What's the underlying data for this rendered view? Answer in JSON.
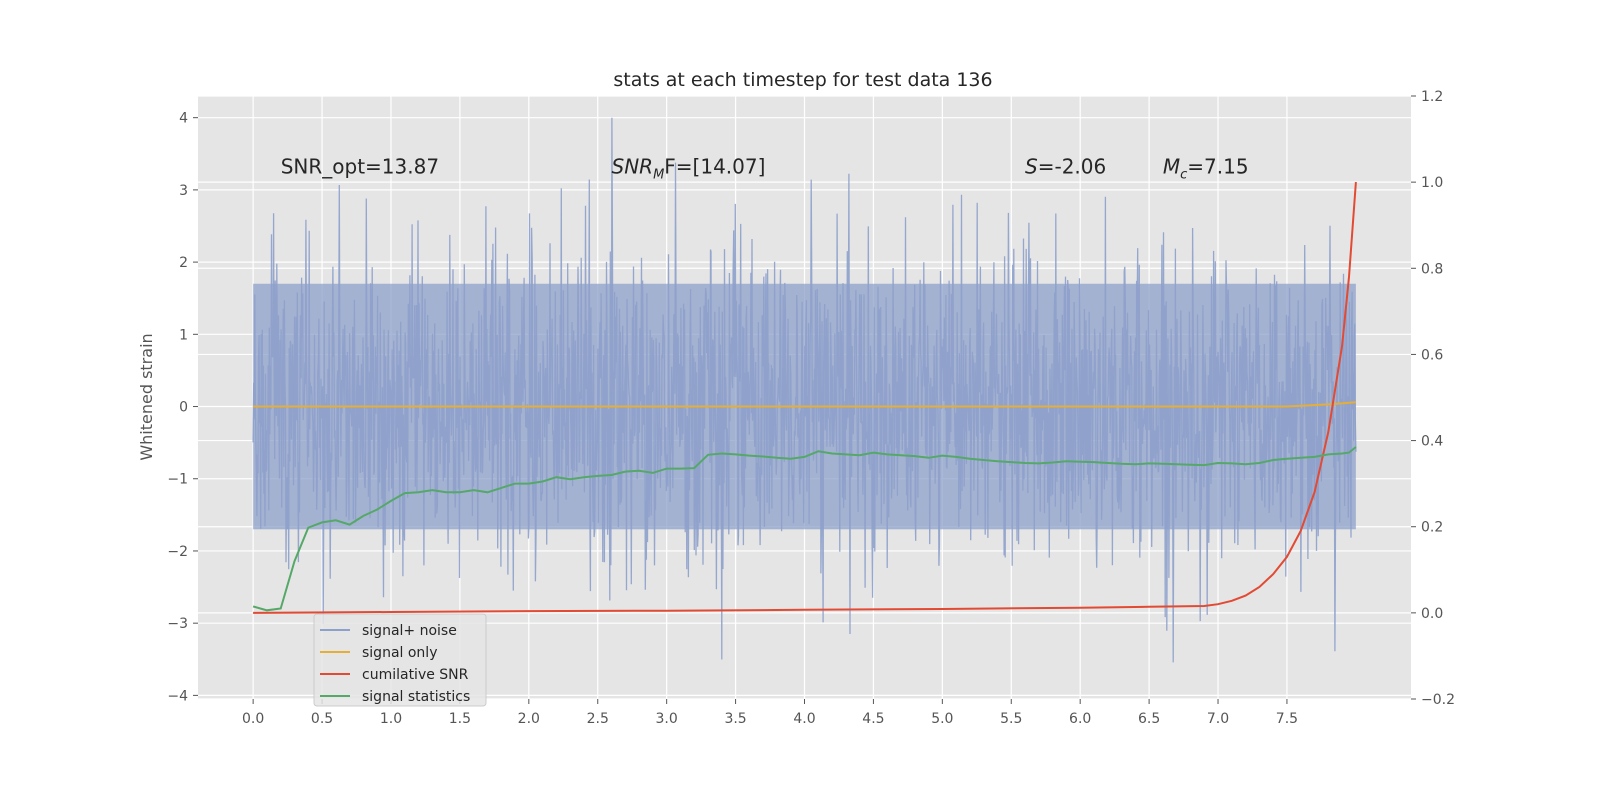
{
  "chart_data": {
    "type": "line",
    "title": "stats at each timestep for test data 136",
    "xlabel": "",
    "ylabel": "Whitened strain",
    "xlim": [
      -0.4,
      8.4
    ],
    "ylim": [
      -4.05,
      4.3
    ],
    "y2lim": [
      -0.2,
      1.2
    ],
    "xticks": [
      "0.0",
      "0.5",
      "1.0",
      "1.5",
      "2.0",
      "2.5",
      "3.0",
      "3.5",
      "4.0",
      "4.5",
      "5.0",
      "5.5",
      "6.0",
      "6.5",
      "7.0",
      "7.5"
    ],
    "xtick_values": [
      0,
      0.5,
      1,
      1.5,
      2,
      2.5,
      3,
      3.5,
      4,
      4.5,
      5,
      5.5,
      6,
      6.5,
      7,
      7.5
    ],
    "yticks": [
      "4",
      "3",
      "2",
      "1",
      "0",
      "−1",
      "−2",
      "−3",
      "−4"
    ],
    "ytick_values": [
      4,
      3,
      2,
      1,
      0,
      -1,
      -2,
      -3,
      -4
    ],
    "y2ticks": [
      "1.2",
      "1.0",
      "0.8",
      "0.6",
      "0.4",
      "0.2",
      "0.0",
      "−0.2"
    ],
    "y2tick_values": [
      1.2,
      1.0,
      0.8,
      0.6,
      0.4,
      0.2,
      0.0,
      -0.2
    ],
    "grid": true,
    "legend_placement": "lower-left",
    "annotations": [
      {
        "text": "SNR_opt=13.87",
        "x": 0.2,
        "y": 3.2
      },
      {
        "prefix": "SNR",
        "sub": "M",
        "suffix": "F=[14.07]",
        "x": 2.6,
        "y": 3.2
      },
      {
        "prefix": "S",
        "sub": "",
        "suffix": "=-2.06",
        "x": 5.6,
        "y": 3.2
      },
      {
        "prefix": "M",
        "sub": "c",
        "suffix": "=7.15",
        "x": 6.6,
        "y": 3.2
      }
    ],
    "series": [
      {
        "name": "signal+ noise",
        "axis": "left",
        "color": "#8da0cb",
        "x_range": [
          0,
          8
        ],
        "samples": 2048,
        "band_low": -1.7,
        "band_high": 1.7,
        "max": 4.0,
        "min": -3.65
      },
      {
        "name": "signal only",
        "axis": "left",
        "color": "#e5ae38",
        "x": [
          0,
          7.5,
          7.8,
          8.0
        ],
        "y": [
          0,
          0,
          0.03,
          0.06
        ]
      },
      {
        "name": "cumilative SNR",
        "axis": "right",
        "color": "#e24a33",
        "x": [
          0,
          1,
          2,
          3,
          4,
          5,
          6,
          6.5,
          6.9,
          7.0,
          7.1,
          7.2,
          7.3,
          7.4,
          7.5,
          7.6,
          7.7,
          7.8,
          7.9,
          7.95,
          8.0
        ],
        "y": [
          0.0,
          0.002,
          0.004,
          0.005,
          0.007,
          0.009,
          0.012,
          0.014,
          0.016,
          0.02,
          0.028,
          0.04,
          0.06,
          0.09,
          0.13,
          0.19,
          0.28,
          0.42,
          0.62,
          0.78,
          1.0
        ]
      },
      {
        "name": "signal statistics",
        "axis": "right",
        "color": "#55a868",
        "x": [
          0,
          0.1,
          0.2,
          0.3,
          0.4,
          0.5,
          0.6,
          0.7,
          0.8,
          0.9,
          1.0,
          1.1,
          1.2,
          1.3,
          1.4,
          1.5,
          1.6,
          1.7,
          1.8,
          1.9,
          2.0,
          2.1,
          2.2,
          2.3,
          2.4,
          2.5,
          2.6,
          2.7,
          2.8,
          2.9,
          3.0,
          3.1,
          3.2,
          3.3,
          3.4,
          3.5,
          3.6,
          3.7,
          3.8,
          3.9,
          4.0,
          4.1,
          4.2,
          4.3,
          4.4,
          4.5,
          4.6,
          4.7,
          4.8,
          4.9,
          5.0,
          5.1,
          5.2,
          5.3,
          5.4,
          5.5,
          5.6,
          5.7,
          5.8,
          5.9,
          6.0,
          6.1,
          6.2,
          6.3,
          6.4,
          6.5,
          6.6,
          6.7,
          6.8,
          6.9,
          7.0,
          7.1,
          7.2,
          7.3,
          7.4,
          7.5,
          7.6,
          7.7,
          7.8,
          7.9,
          7.95,
          8.0
        ],
        "y": [
          0.015,
          0.006,
          0.01,
          0.12,
          0.198,
          0.21,
          0.215,
          0.205,
          0.225,
          0.24,
          0.26,
          0.278,
          0.28,
          0.285,
          0.28,
          0.28,
          0.285,
          0.28,
          0.29,
          0.3,
          0.3,
          0.305,
          0.315,
          0.31,
          0.315,
          0.318,
          0.32,
          0.328,
          0.33,
          0.325,
          0.335,
          0.335,
          0.336,
          0.367,
          0.37,
          0.368,
          0.365,
          0.363,
          0.36,
          0.358,
          0.362,
          0.375,
          0.37,
          0.368,
          0.366,
          0.372,
          0.368,
          0.366,
          0.364,
          0.36,
          0.365,
          0.362,
          0.358,
          0.355,
          0.352,
          0.35,
          0.348,
          0.347,
          0.349,
          0.352,
          0.351,
          0.35,
          0.348,
          0.346,
          0.345,
          0.347,
          0.346,
          0.345,
          0.344,
          0.343,
          0.348,
          0.347,
          0.345,
          0.348,
          0.355,
          0.358,
          0.36,
          0.362,
          0.368,
          0.37,
          0.372,
          0.385
        ]
      }
    ]
  }
}
